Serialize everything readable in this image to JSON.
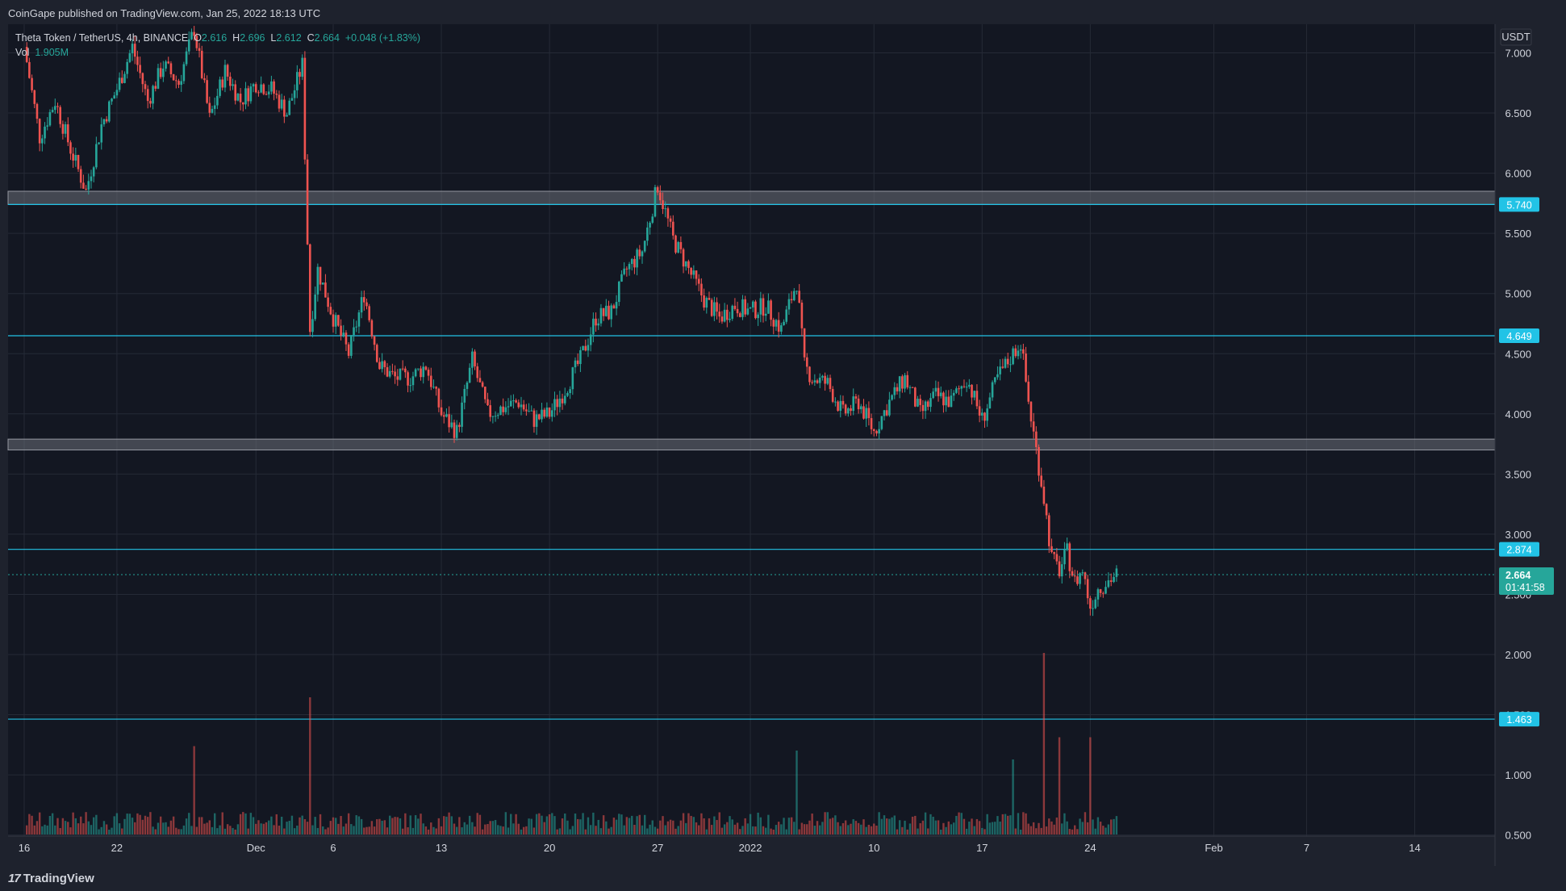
{
  "header": {
    "publisher": "CoinGape published on TradingView.com, Jan 25, 2022 18:13 UTC"
  },
  "legend": {
    "symbol": "Theta Token / TetherUS, 4h, BINANCE",
    "open_label": "O",
    "open": "2.616",
    "high_label": "H",
    "high": "2.696",
    "low_label": "L",
    "low": "2.612",
    "close_label": "C",
    "close": "2.664",
    "change": "+0.048 (+1.83%)",
    "vol_label": "Vol",
    "vol_value": "1.905M"
  },
  "footer": {
    "brand": "TradingView",
    "brand_mark": "17"
  },
  "colors": {
    "background": "#131722",
    "frame": "#1e222d",
    "grid": "#252a36",
    "up": "#26a69a",
    "down": "#ef5350",
    "level": "#22c3e6",
    "zone": "#6b6f78"
  },
  "chart_data": {
    "type": "candlestick",
    "currency": "USDT",
    "y_ticks": [
      "7.000",
      "6.500",
      "6.000",
      "5.500",
      "5.000",
      "4.500",
      "4.000",
      "3.500",
      "3.000",
      "2.500",
      "2.000",
      "1.500",
      "1.000",
      "0.500"
    ],
    "y_tick_values": [
      7,
      6.5,
      6,
      5.5,
      5,
      4.5,
      4,
      3.5,
      3,
      2.5,
      2,
      1.5,
      1,
      0.5
    ],
    "ylim": [
      0.42,
      7.25
    ],
    "x_ticks": [
      "16",
      "22",
      "Dec",
      "6",
      "13",
      "20",
      "27",
      "2022",
      "10",
      "17",
      "24",
      "Feb",
      "7",
      "14"
    ],
    "x_tick_days": [
      0,
      6,
      15,
      20,
      27,
      34,
      41,
      47,
      55,
      62,
      69,
      77,
      83,
      90
    ],
    "x_range_days": [
      0,
      97.5
    ],
    "price_levels": [
      {
        "label": "5.740",
        "value": 5.74
      },
      {
        "label": "4.649",
        "value": 4.649
      },
      {
        "label": "2.874",
        "value": 2.874
      },
      {
        "label": "1.463",
        "value": 1.463
      }
    ],
    "zones": [
      [
        5.74,
        5.85
      ],
      [
        3.7,
        3.79
      ]
    ],
    "current": {
      "label": "2.664",
      "value": 2.664,
      "countdown": "01:41:58"
    },
    "path": [
      [
        0,
        7.05
      ],
      [
        1,
        6.3
      ],
      [
        2,
        6.6
      ],
      [
        3,
        6.2
      ],
      [
        4,
        5.85
      ],
      [
        5,
        6.4
      ],
      [
        6,
        6.7
      ],
      [
        7,
        7.05
      ],
      [
        8,
        6.6
      ],
      [
        9,
        6.9
      ],
      [
        10,
        6.75
      ],
      [
        11,
        7.2
      ],
      [
        12,
        6.45
      ],
      [
        13,
        6.85
      ],
      [
        14,
        6.6
      ],
      [
        15,
        6.75
      ],
      [
        16,
        6.7
      ],
      [
        17,
        6.5
      ],
      [
        18,
        6.9
      ],
      [
        18.5,
        4.7
      ],
      [
        19,
        5.2
      ],
      [
        20,
        4.8
      ],
      [
        21,
        4.5
      ],
      [
        22,
        5.0
      ],
      [
        23,
        4.4
      ],
      [
        24,
        4.3
      ],
      [
        25,
        4.3
      ],
      [
        26,
        4.4
      ],
      [
        27,
        4.0
      ],
      [
        28,
        3.85
      ],
      [
        29,
        4.45
      ],
      [
        30,
        4.0
      ],
      [
        31,
        4.05
      ],
      [
        32,
        4.1
      ],
      [
        33,
        3.95
      ],
      [
        34,
        4.0
      ],
      [
        35,
        4.2
      ],
      [
        36,
        4.45
      ],
      [
        37,
        4.8
      ],
      [
        38,
        4.85
      ],
      [
        39,
        5.2
      ],
      [
        40,
        5.35
      ],
      [
        41,
        5.9
      ],
      [
        42,
        5.45
      ],
      [
        43,
        5.2
      ],
      [
        44,
        4.95
      ],
      [
        45,
        4.8
      ],
      [
        46,
        4.9
      ],
      [
        47,
        4.85
      ],
      [
        48,
        4.9
      ],
      [
        49,
        4.7
      ],
      [
        50,
        5.1
      ],
      [
        50.5,
        4.4
      ],
      [
        51,
        4.3
      ],
      [
        52,
        4.25
      ],
      [
        53,
        4.0
      ],
      [
        54,
        4.1
      ],
      [
        55,
        3.85
      ],
      [
        56,
        4.1
      ],
      [
        57,
        4.3
      ],
      [
        58,
        4.0
      ],
      [
        59,
        4.15
      ],
      [
        60,
        4.1
      ],
      [
        61,
        4.3
      ],
      [
        62,
        3.95
      ],
      [
        63,
        4.3
      ],
      [
        64,
        4.5
      ],
      [
        64.5,
        4.6
      ],
      [
        65,
        4.1
      ],
      [
        65.5,
        3.7
      ],
      [
        66,
        3.3
      ],
      [
        66.5,
        2.8
      ],
      [
        67,
        2.7
      ],
      [
        67.5,
        2.85
      ],
      [
        68,
        2.6
      ],
      [
        68.5,
        2.7
      ],
      [
        69,
        2.4
      ],
      [
        69.5,
        2.55
      ],
      [
        70,
        2.6
      ],
      [
        70.7,
        2.664
      ]
    ],
    "volume_spikes": [
      [
        18.5,
        1.0
      ],
      [
        11,
        0.45
      ],
      [
        66,
        1.5
      ],
      [
        67,
        0.55
      ],
      [
        69,
        0.55
      ],
      [
        64,
        0.3
      ],
      [
        50,
        0.4
      ]
    ]
  }
}
